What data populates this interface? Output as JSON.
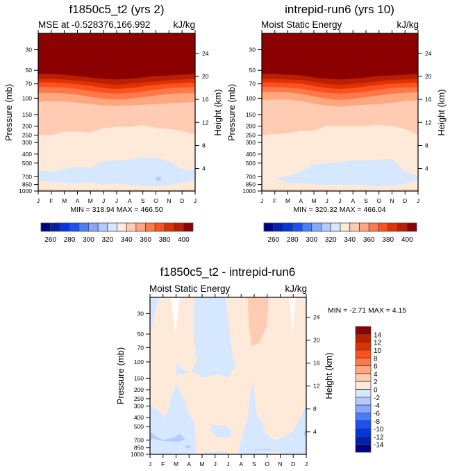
{
  "chart_data": [
    {
      "type": "heatmap",
      "id": "panel-model",
      "title": "f1850c5_t2 (yrs 2)",
      "left_string": "MSE at -0.528376,166.992",
      "right_string": "kJ/kg",
      "xlabel": "",
      "ylabel": "Pressure (mb)",
      "ylabel_right": "Height (km)",
      "x_ticks": [
        "J",
        "F",
        "M",
        "A",
        "M",
        "J",
        "J",
        "A",
        "S",
        "O",
        "N",
        "D",
        "J"
      ],
      "y_ticks": [
        "30",
        "50",
        "70",
        "100",
        "150",
        "200",
        "250",
        "300",
        "400",
        "500",
        "700",
        "850",
        "1000"
      ],
      "y_ticks_right": [
        "24",
        "20",
        "16",
        "12",
        "8",
        "4"
      ],
      "minmax_text": "MIN = 318.94 MAX = 466.50",
      "min": 318.94,
      "max": 466.5,
      "contour_levels_kJkg": [
        330,
        340,
        350,
        360,
        370,
        380,
        390,
        400
      ],
      "months": [
        0,
        1,
        2,
        3,
        4,
        5,
        6,
        7,
        8,
        9,
        10,
        11,
        12
      ],
      "boundaries_mb": [
        {
          "level": 400,
          "p": [
            55,
            55,
            56,
            58,
            60,
            62,
            63,
            62,
            60,
            58,
            57,
            56,
            55
          ]
        },
        {
          "level": 390,
          "p": [
            62,
            62,
            63,
            65,
            67,
            70,
            72,
            70,
            68,
            66,
            64,
            63,
            62
          ]
        },
        {
          "level": 380,
          "p": [
            68,
            68,
            69,
            71,
            74,
            78,
            80,
            78,
            75,
            72,
            70,
            69,
            68
          ]
        },
        {
          "level": 370,
          "p": [
            76,
            76,
            77,
            80,
            84,
            88,
            90,
            88,
            85,
            81,
            78,
            77,
            76
          ]
        },
        {
          "level": 360,
          "p": [
            88,
            88,
            89,
            92,
            97,
            102,
            104,
            102,
            98,
            94,
            90,
            89,
            88
          ]
        },
        {
          "level": 350,
          "p": [
            110,
            108,
            108,
            112,
            116,
            120,
            122,
            120,
            118,
            116,
            114,
            112,
            110
          ]
        },
        {
          "level": 340,
          "p": [
            250,
            250,
            230,
            230,
            235,
            210,
            205,
            205,
            195,
            210,
            215,
            225,
            250
          ]
        },
        {
          "level": 330,
          "p": [
            600,
            620,
            580,
            550,
            560,
            480,
            470,
            460,
            440,
            440,
            480,
            590,
            600
          ]
        },
        {
          "level": 320,
          "p": [
            780,
            800,
            820,
            830,
            810,
            860,
            830,
            860,
            880,
            900,
            870,
            820,
            780
          ]
        },
        {
          "level": 330,
          "p": [
            960,
            965,
            970,
            970,
            970,
            970,
            970,
            970,
            975,
            990,
            975,
            970,
            960
          ]
        }
      ]
    },
    {
      "type": "heatmap",
      "id": "panel-control",
      "title": "intrepid-run6 (yrs 10)",
      "left_string": "Moist Static Energy",
      "right_string": "kJ/kg",
      "ylabel": "Pressure (mb)",
      "ylabel_right": "Height (km)",
      "x_ticks": [
        "J",
        "F",
        "M",
        "A",
        "M",
        "J",
        "J",
        "A",
        "S",
        "O",
        "N",
        "D",
        "J"
      ],
      "y_ticks": [
        "30",
        "50",
        "70",
        "100",
        "150",
        "200",
        "250",
        "300",
        "400",
        "500",
        "700",
        "850",
        "1000"
      ],
      "y_ticks_right": [
        "24",
        "20",
        "16",
        "12",
        "8",
        "4"
      ],
      "minmax_text": "MIN = 320.32 MAX = 466.04",
      "min": 320.32,
      "max": 466.04,
      "contour_levels_kJkg": [
        330,
        340,
        350,
        360,
        370,
        380,
        390,
        400
      ],
      "months": [
        0,
        1,
        2,
        3,
        4,
        5,
        6,
        7,
        8,
        9,
        10,
        11,
        12
      ],
      "boundaries_mb": [
        {
          "level": 400,
          "p": [
            55,
            55,
            56,
            57,
            60,
            62,
            63,
            62,
            60,
            58,
            57,
            56,
            55
          ]
        },
        {
          "level": 390,
          "p": [
            62,
            62,
            63,
            64,
            67,
            70,
            72,
            70,
            68,
            66,
            64,
            63,
            62
          ]
        },
        {
          "level": 380,
          "p": [
            68,
            68,
            69,
            70,
            74,
            78,
            80,
            78,
            75,
            72,
            70,
            69,
            68
          ]
        },
        {
          "level": 370,
          "p": [
            76,
            76,
            77,
            79,
            84,
            88,
            90,
            88,
            85,
            81,
            78,
            77,
            76
          ]
        },
        {
          "level": 360,
          "p": [
            86,
            86,
            87,
            90,
            96,
            102,
            105,
            102,
            98,
            94,
            90,
            88,
            86
          ]
        },
        {
          "level": 350,
          "p": [
            105,
            104,
            104,
            108,
            115,
            120,
            124,
            120,
            118,
            116,
            112,
            108,
            105
          ]
        },
        {
          "level": 340,
          "p": [
            250,
            245,
            240,
            225,
            225,
            200,
            200,
            200,
            200,
            195,
            200,
            215,
            250
          ]
        },
        {
          "level": 330,
          "p": [
            730,
            730,
            700,
            620,
            520,
            500,
            490,
            470,
            470,
            460,
            460,
            620,
            700
          ]
        },
        {
          "level": 320,
          "p": [
            730,
            730,
            820,
            820,
            850,
            860,
            860,
            860,
            860,
            900,
            870,
            840,
            760
          ]
        },
        {
          "level": 330,
          "p": [
            960,
            965,
            965,
            965,
            965,
            965,
            970,
            970,
            970,
            990,
            970,
            965,
            960
          ]
        }
      ]
    },
    {
      "type": "heatmap",
      "id": "panel-difference",
      "title": "f1850c5_t2 - intrepid-run6",
      "left_string": "Moist Static Energy",
      "right_string": "kJ/kg",
      "ylabel": "Pressure (mb)",
      "ylabel_right": "Height (km)",
      "x_ticks": [
        "J",
        "F",
        "M",
        "A",
        "M",
        "J",
        "J",
        "A",
        "S",
        "O",
        "N",
        "D",
        "J"
      ],
      "y_ticks": [
        "30",
        "50",
        "70",
        "100",
        "150",
        "200",
        "250",
        "300",
        "400",
        "500",
        "700",
        "850",
        "1000"
      ],
      "y_ticks_right": [
        "24",
        "20",
        "16",
        "12",
        "8",
        "4"
      ],
      "minmax_text": "MIN =  -2.71 MAX =   4.15",
      "min": -2.71,
      "max": 4.15,
      "contour_levels_kJkg": [
        -14,
        -12,
        -10,
        -8,
        -6,
        -4,
        -2,
        0,
        2,
        4,
        6,
        8,
        10,
        12,
        14
      ],
      "regions": [
        {
          "range": "0 to 2",
          "where": "most of domain"
        },
        {
          "range": "-2 to 0",
          "where": "Apr-Jul 30-150mb; Jan-Apr 250-1000mb; Aug-Oct 150-1000mb; Dec-Jan low levels"
        },
        {
          "range": "-4 to -2",
          "where": "Jan-Mar ~600-700mb"
        },
        {
          "range": "2 to 4",
          "where": "Aug-Oct 30-65mb"
        }
      ]
    }
  ],
  "colorbars": {
    "absolute": {
      "labels": [
        "260",
        "280",
        "300",
        "320",
        "340",
        "360",
        "380",
        "400"
      ],
      "colors": [
        "#00008b",
        "#0020b0",
        "#0035e0",
        "#1c50ff",
        "#4a7cff",
        "#88a8ff",
        "#b4caff",
        "#d6e8ff",
        "#ffe9d8",
        "#ffcbb2",
        "#ffa880",
        "#ff7a48",
        "#ff5020",
        "#e03200",
        "#b82000",
        "#8b0000"
      ]
    },
    "difference": {
      "labels": [
        "14",
        "12",
        "10",
        "8",
        "6",
        "4",
        "2",
        "0",
        "-2",
        "-4",
        "-6",
        "-8",
        "-10",
        "-12",
        "-14"
      ],
      "colors_top_to_bottom": [
        "#8b0000",
        "#b82000",
        "#e03200",
        "#ff5020",
        "#ff7a48",
        "#ffa880",
        "#ffcbb2",
        "#ffe9d8",
        "#d6e8ff",
        "#b4caff",
        "#88a8ff",
        "#4a7cff",
        "#1c50ff",
        "#0035e0",
        "#0020b0",
        "#00008b"
      ]
    }
  }
}
